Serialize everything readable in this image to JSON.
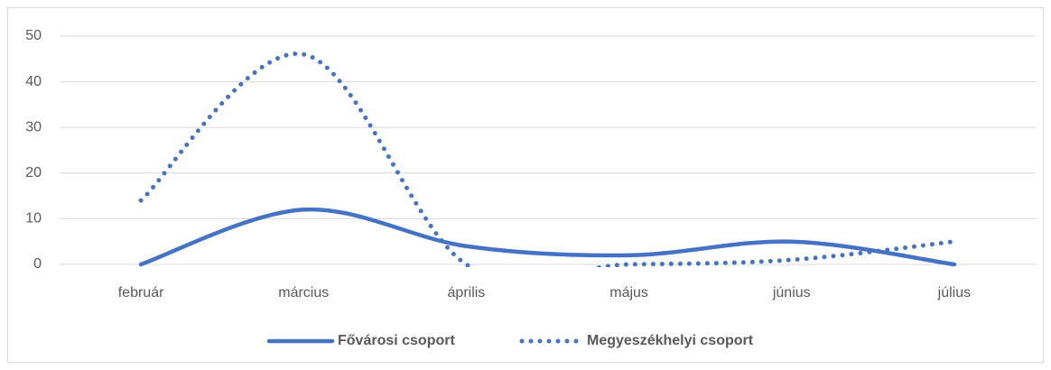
{
  "chart_data": {
    "type": "line",
    "categories": [
      "február",
      "március",
      "április",
      "május",
      "június",
      "július"
    ],
    "series": [
      {
        "name": "Fővárosi csoport",
        "color": "#4472c4",
        "style": "solid",
        "values": [
          0,
          12,
          4,
          2,
          5,
          0
        ]
      },
      {
        "name": "Megyeszékhelyi csoport",
        "color": "#4472c4",
        "style": "dotted",
        "values": [
          14,
          46,
          0,
          0,
          1,
          5
        ]
      }
    ],
    "ylim": [
      0,
      50
    ],
    "yticks": [
      0,
      10,
      20,
      30,
      40,
      50
    ],
    "grid": true,
    "smooth": true,
    "legend": "bottom"
  }
}
